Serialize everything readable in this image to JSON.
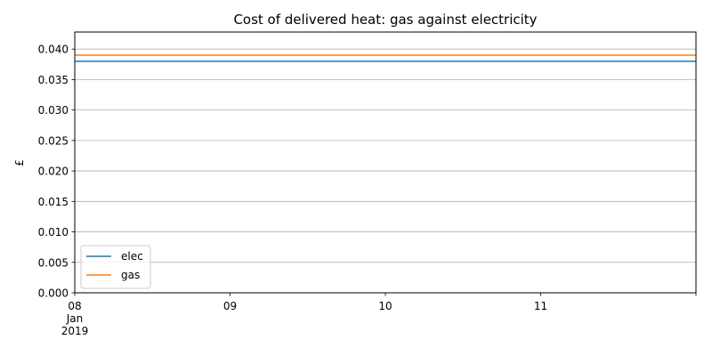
{
  "chart_data": {
    "type": "line",
    "title": "Cost of delivered heat: gas against electricity",
    "xlabel": "",
    "ylabel": "£",
    "x_tick_labels": [
      [
        "08",
        "Jan",
        "2019"
      ],
      [
        "09"
      ],
      [
        "10"
      ],
      [
        "11"
      ]
    ],
    "x_ticks_days": [
      "2019-01-08",
      "2019-01-09",
      "2019-01-10",
      "2019-01-11"
    ],
    "xlim": [
      "2019-01-08",
      "2019-01-12"
    ],
    "ylim": [
      0,
      0.0428
    ],
    "y_ticks": [
      "0.000",
      "0.005",
      "0.010",
      "0.015",
      "0.020",
      "0.025",
      "0.030",
      "0.035",
      "0.040"
    ],
    "grid": "horizontal",
    "legend_position": "lower-left",
    "series": [
      {
        "name": "elec",
        "color": "#1f77b4",
        "x": [
          "2019-01-08",
          "2019-01-12"
        ],
        "values": [
          0.038,
          0.038
        ]
      },
      {
        "name": "gas",
        "color": "#ff7f0e",
        "x": [
          "2019-01-08",
          "2019-01-12"
        ],
        "values": [
          0.039,
          0.039
        ]
      }
    ]
  }
}
